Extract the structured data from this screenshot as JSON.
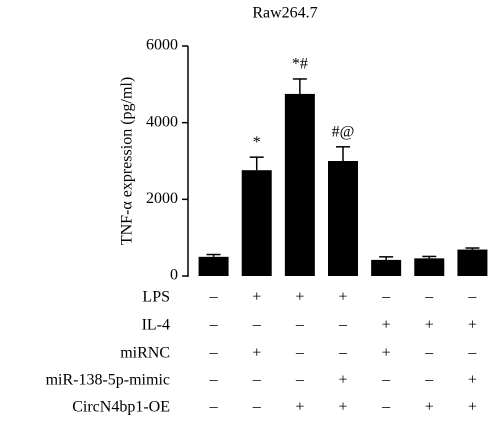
{
  "chart_data": {
    "type": "bar",
    "title": "Raw264.7",
    "y_label": "TNF-α expression (pg/ml)",
    "categories": [
      null,
      null,
      null,
      null,
      null,
      null,
      null
    ],
    "values": [
      500,
      2760,
      4750,
      3000,
      420,
      460,
      690
    ],
    "errors": [
      60,
      340,
      390,
      370,
      80,
      50,
      40
    ],
    "annotations": [
      null,
      "*",
      "*#",
      "#@",
      null,
      null,
      null
    ],
    "color": "#000000",
    "ylim": [
      0,
      6000
    ],
    "yticks": [
      0,
      2000,
      4000,
      6000
    ],
    "conditions": [
      {
        "label": "LPS",
        "signs": [
          "–",
          "+",
          "+",
          "+",
          "–",
          "–",
          "–"
        ]
      },
      {
        "label": "IL-4",
        "signs": [
          "–",
          "–",
          "–",
          "–",
          "+",
          "+",
          "+"
        ]
      },
      {
        "label": "miRNC",
        "signs": [
          "–",
          "+",
          "–",
          "–",
          "+",
          "–",
          "–"
        ]
      },
      {
        "label": "miR-138-5p-mimic",
        "signs": [
          "–",
          "–",
          "–",
          "+",
          "–",
          "–",
          "+"
        ]
      },
      {
        "label": "CircN4bp1-OE",
        "signs": [
          "–",
          "–",
          "+",
          "+",
          "–",
          "+",
          "+"
        ]
      }
    ]
  }
}
